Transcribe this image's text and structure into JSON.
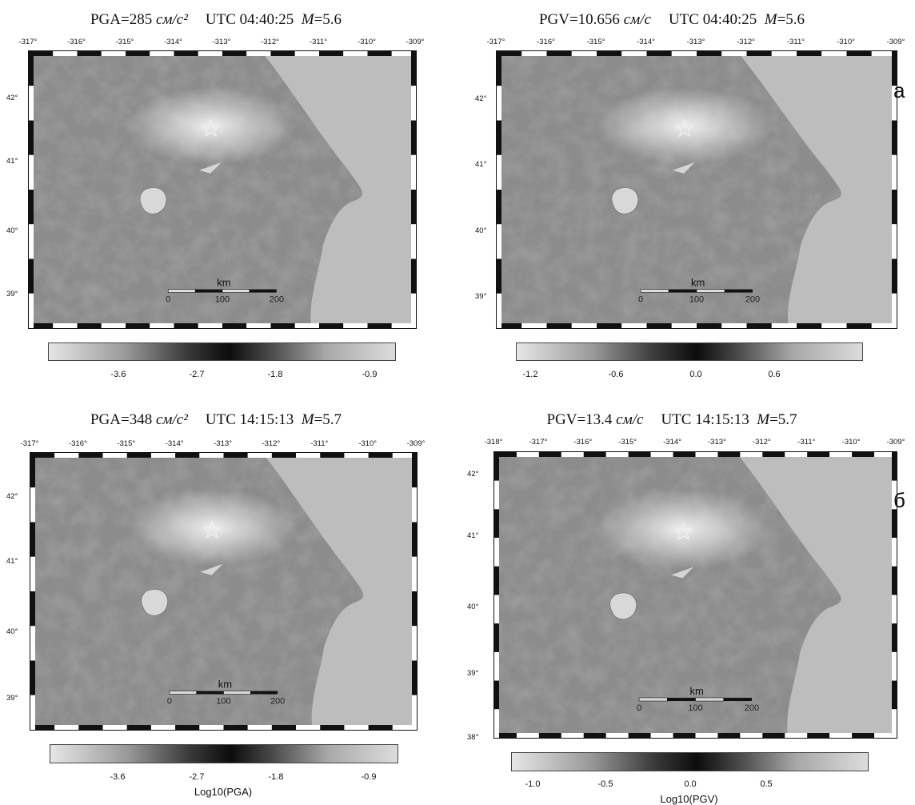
{
  "panels": [
    {
      "title_prefix": "PGA=285 ",
      "title_unit": "см/с²",
      "title_time": "UTC 04:40:25",
      "title_m": "M",
      "title_mval": "=5.6",
      "lon_ticks": [
        "-317°",
        "-316°",
        "-315°",
        "-314°",
        "-313°",
        "-312°",
        "-311°",
        "-310°",
        "-309°"
      ],
      "lat_ticks": [
        "42°",
        "41°",
        "40°",
        "39°"
      ],
      "scale_title": "km",
      "scale_labels": [
        "0",
        "100",
        "200"
      ],
      "colorbar_ticks": [
        "-3.6",
        "-2.7",
        "-1.8",
        "-0.9"
      ],
      "colorbar_label": ""
    },
    {
      "title_prefix": "PGV=10.656 ",
      "title_unit": "см/с",
      "title_time": "UTC 04:40:25",
      "title_m": "M",
      "title_mval": "=5.6",
      "lon_ticks": [
        "-317°",
        "-316°",
        "-315°",
        "-314°",
        "-313°",
        "-312°",
        "-311°",
        "-310°",
        "-309°"
      ],
      "lat_ticks": [
        "42°",
        "41°",
        "40°",
        "39°"
      ],
      "scale_title": "km",
      "scale_labels": [
        "0",
        "100",
        "200"
      ],
      "colorbar_ticks": [
        "-1.2",
        "-0.6",
        "0.0",
        "0.6"
      ],
      "colorbar_label": ""
    },
    {
      "title_prefix": "PGA=348 ",
      "title_unit": "см/с²",
      "title_time": "UTC 14:15:13",
      "title_m": "M",
      "title_mval": "=5.7",
      "lon_ticks": [
        "-317°",
        "-316°",
        "-315°",
        "-314°",
        "-313°",
        "-312°",
        "-311°",
        "-310°",
        "-309°"
      ],
      "lat_ticks": [
        "42°",
        "41°",
        "40°",
        "39°"
      ],
      "scale_title": "km",
      "scale_labels": [
        "0",
        "100",
        "200"
      ],
      "colorbar_ticks": [
        "-3.6",
        "-2.7",
        "-1.8",
        "-0.9"
      ],
      "colorbar_label": "Log10(PGA)"
    },
    {
      "title_prefix": "PGV=13.4 ",
      "title_unit": "см/с",
      "title_time": "UTC 14:15:13",
      "title_m": "M",
      "title_mval": "=5.7",
      "lon_ticks": [
        "-318°",
        "-317°",
        "-316°",
        "-315°",
        "-314°",
        "-313°",
        "-312°",
        "-311°",
        "-310°",
        "-309°"
      ],
      "lat_ticks": [
        "42°",
        "41°",
        "40°",
        "39°",
        "38°"
      ],
      "scale_title": "km",
      "scale_labels": [
        "0",
        "100",
        "200"
      ],
      "colorbar_ticks": [
        "-1.0",
        "-0.5",
        "0.0",
        "0.5"
      ],
      "colorbar_label": "Log10(PGV)"
    }
  ],
  "side_labels": {
    "a": "а",
    "b": "б"
  },
  "colors": {
    "land": "#8c8c8c",
    "sea": "#bdbdbd",
    "frame": "#111111"
  }
}
